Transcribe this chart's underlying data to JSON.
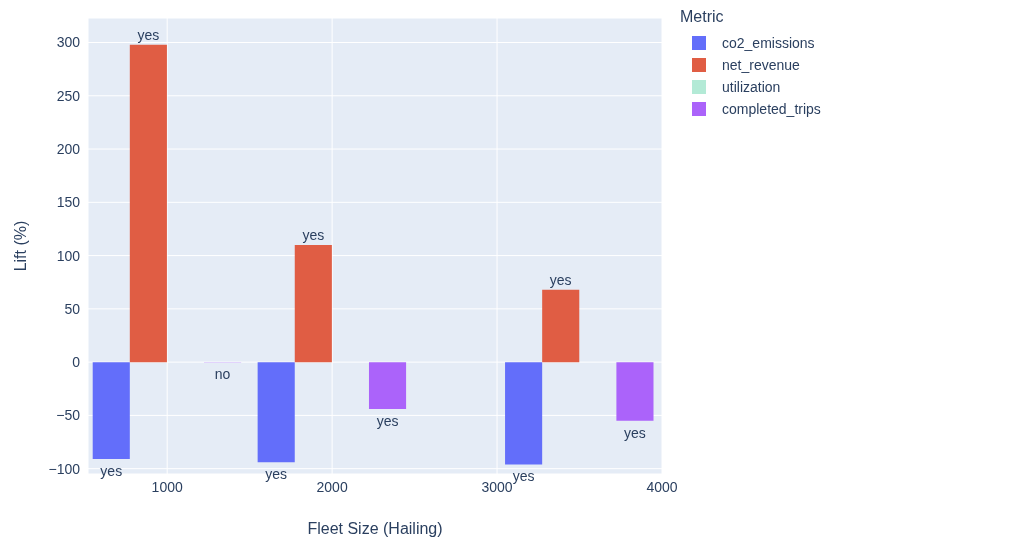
{
  "chart_data": {
    "type": "bar",
    "xlabel": "Fleet Size (Hailing)",
    "ylabel": "Lift (%)",
    "legend_title": "Metric",
    "x": [
      1000,
      2000,
      3500
    ],
    "series": [
      {
        "name": "co2_emissions",
        "color": "#636efa",
        "values": [
          -91,
          -94,
          -96
        ],
        "value_labels": [
          "yes",
          "yes",
          "yes"
        ]
      },
      {
        "name": "net_revenue",
        "color": "#e05d44",
        "values": [
          298,
          110,
          68
        ],
        "value_labels": [
          "yes",
          "yes",
          "yes"
        ]
      },
      {
        "name": "utilization",
        "color": "#b3ead6",
        "values": [
          null,
          null,
          null
        ],
        "value_labels": [
          null,
          null,
          null
        ]
      },
      {
        "name": "completed_trips",
        "color": "#ab63fa",
        "values": [
          0,
          -44,
          -55
        ],
        "value_labels": [
          "no",
          "yes",
          "yes"
        ]
      }
    ],
    "xlim": [
      520,
      4000
    ],
    "xticks": [
      1000,
      2000,
      3000,
      4000
    ],
    "ylim": [
      -105,
      323
    ],
    "yticks": [
      -100,
      -50,
      0,
      50,
      100,
      150,
      200,
      250,
      300
    ],
    "grid": true,
    "legend": "top right"
  }
}
